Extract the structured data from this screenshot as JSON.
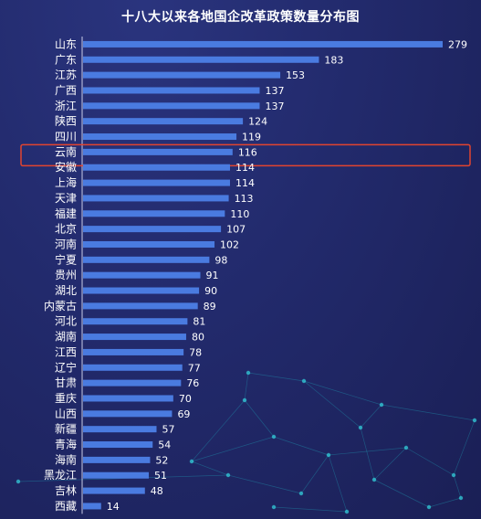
{
  "chart_data": {
    "type": "bar",
    "orientation": "horizontal",
    "title": "十八大以来各地国企改革政策数量分布图",
    "xlabel": "",
    "ylabel": "",
    "xlim": [
      0,
      279
    ],
    "grid": false,
    "bar_color": "#4a7be0",
    "highlight_color": "#e2442f",
    "highlight_category": "云南",
    "categories": [
      "山东",
      "广东",
      "江苏",
      "广西",
      "浙江",
      "陕西",
      "四川",
      "云南",
      "安徽",
      "上海",
      "天津",
      "福建",
      "北京",
      "河南",
      "宁夏",
      "贵州",
      "湖北",
      "内蒙古",
      "河北",
      "湖南",
      "江西",
      "辽宁",
      "甘肃",
      "重庆",
      "山西",
      "新疆",
      "青海",
      "海南",
      "黑龙江",
      "吉林",
      "西藏"
    ],
    "values": [
      279,
      183,
      153,
      137,
      137,
      124,
      119,
      116,
      114,
      114,
      113,
      110,
      107,
      102,
      98,
      91,
      90,
      89,
      81,
      80,
      78,
      77,
      76,
      70,
      69,
      57,
      54,
      52,
      51,
      48,
      14
    ]
  }
}
